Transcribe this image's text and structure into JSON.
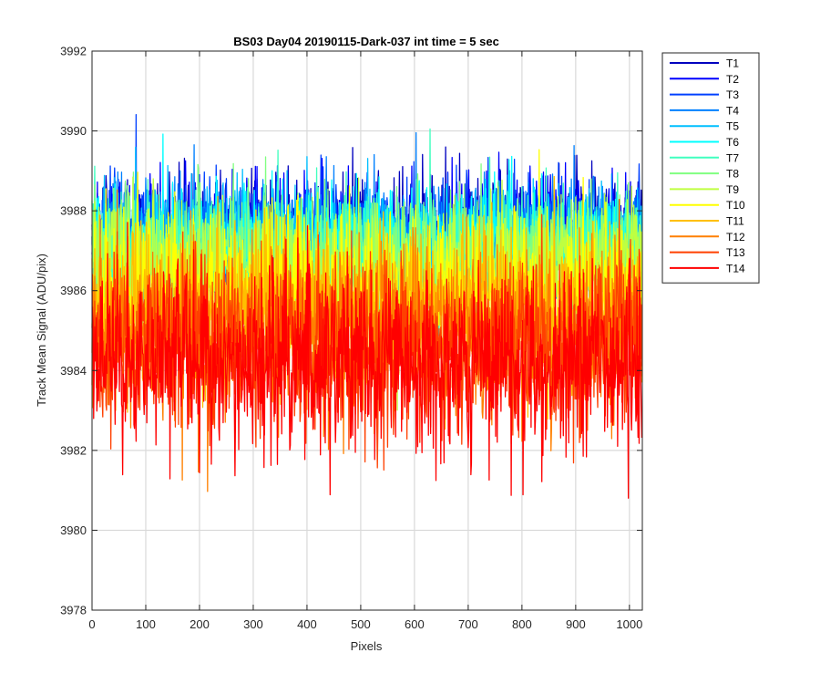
{
  "chart_data": {
    "type": "line",
    "title": "BS03 Day04 20190115-Dark-037 int time = 5 sec",
    "xlabel": "Pixels",
    "ylabel": "Track Mean Signal (ADU/pix)",
    "xlim": [
      0,
      1024
    ],
    "ylim": [
      3978,
      3992
    ],
    "xticks": [
      0,
      100,
      200,
      300,
      400,
      500,
      600,
      700,
      800,
      900,
      1000
    ],
    "yticks": [
      3978,
      3980,
      3982,
      3984,
      3986,
      3988,
      3990,
      3992
    ],
    "grid": true,
    "legend_position": "outside-top-right",
    "n_points": 1024,
    "series": [
      {
        "name": "T1",
        "color": "#0000bf",
        "mean": 3987.5,
        "noise": 0.7
      },
      {
        "name": "T2",
        "color": "#0000ff",
        "mean": 3987.4,
        "noise": 0.7
      },
      {
        "name": "T3",
        "color": "#0040ff",
        "mean": 3987.3,
        "noise": 0.7
      },
      {
        "name": "T4",
        "color": "#0080ff",
        "mean": 3987.3,
        "noise": 0.7
      },
      {
        "name": "T5",
        "color": "#00bfff",
        "mean": 3987.2,
        "noise": 0.7
      },
      {
        "name": "T6",
        "color": "#00ffff",
        "mean": 3987.2,
        "noise": 0.7
      },
      {
        "name": "T7",
        "color": "#40ffbf",
        "mean": 3987.0,
        "noise": 0.75
      },
      {
        "name": "T8",
        "color": "#80ff80",
        "mean": 3986.8,
        "noise": 0.8
      },
      {
        "name": "T9",
        "color": "#bfff40",
        "mean": 3986.5,
        "noise": 0.85
      },
      {
        "name": "T10",
        "color": "#ffff00",
        "mean": 3986.0,
        "noise": 0.95
      },
      {
        "name": "T11",
        "color": "#ffbf00",
        "mean": 3985.5,
        "noise": 1.0
      },
      {
        "name": "T12",
        "color": "#ff8000",
        "mean": 3985.0,
        "noise": 1.05
      },
      {
        "name": "T13",
        "color": "#ff4000",
        "mean": 3984.6,
        "noise": 1.1
      },
      {
        "name": "T14",
        "color": "#ff0000",
        "mean": 3984.2,
        "noise": 1.15
      }
    ]
  }
}
